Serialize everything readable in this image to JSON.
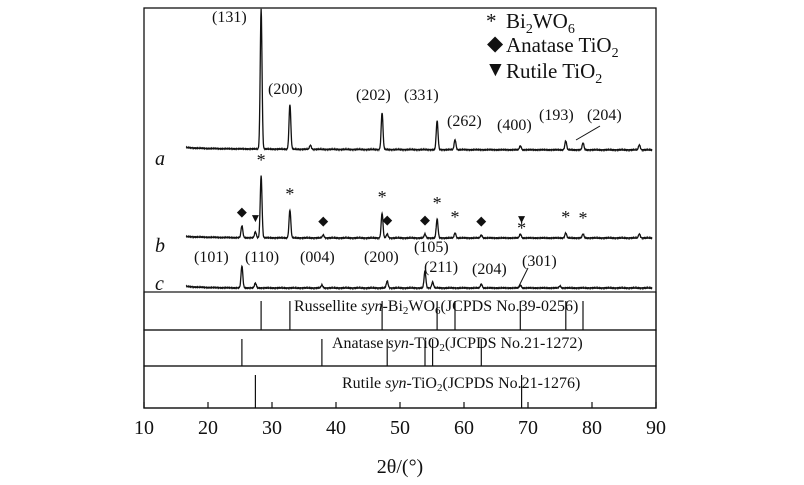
{
  "chart_data": {
    "type": "line",
    "xlabel": "2θ/(°)",
    "xlim": [
      10,
      90
    ],
    "xticks": [
      10,
      20,
      30,
      40,
      50,
      60,
      70,
      80,
      90
    ],
    "legend": [
      {
        "marker": "asterisk",
        "symbol": "*",
        "label_parts": [
          "Bi",
          "2",
          "WO",
          "6"
        ]
      },
      {
        "marker": "diamond",
        "symbol": "◆",
        "label_parts": [
          "Anatase TiO",
          "2"
        ]
      },
      {
        "marker": "triangle-down",
        "symbol": "▼",
        "label_parts": [
          "Rutile TiO",
          "2"
        ]
      }
    ],
    "series": [
      {
        "name": "a",
        "baseline": 0,
        "peaks": [
          {
            "x": 28.3,
            "y": 140
          },
          {
            "x": 32.8,
            "y": 45
          },
          {
            "x": 36.0,
            "y": 4
          },
          {
            "x": 47.2,
            "y": 37
          },
          {
            "x": 55.8,
            "y": 29
          },
          {
            "x": 58.6,
            "y": 10
          },
          {
            "x": 68.8,
            "y": 4
          },
          {
            "x": 75.9,
            "y": 9
          },
          {
            "x": 78.6,
            "y": 7
          },
          {
            "x": 87.4,
            "y": 5
          }
        ],
        "hkl_labels": [
          "(131)",
          "(200)",
          "(202)",
          "(331)",
          "(262)",
          "(400)",
          "(193)",
          "(204)"
        ]
      },
      {
        "name": "b",
        "baseline": 0,
        "peaks": [
          {
            "x": 25.3,
            "y": 12
          },
          {
            "x": 27.4,
            "y": 6
          },
          {
            "x": 28.3,
            "y": 62
          },
          {
            "x": 32.8,
            "y": 28
          },
          {
            "x": 38.0,
            "y": 3
          },
          {
            "x": 47.2,
            "y": 25
          },
          {
            "x": 48.0,
            "y": 4
          },
          {
            "x": 53.9,
            "y": 4
          },
          {
            "x": 55.8,
            "y": 19
          },
          {
            "x": 58.6,
            "y": 5
          },
          {
            "x": 62.7,
            "y": 3
          },
          {
            "x": 68.8,
            "y": 4
          },
          {
            "x": 75.9,
            "y": 5
          },
          {
            "x": 78.6,
            "y": 4
          },
          {
            "x": 87.4,
            "y": 4
          }
        ],
        "markers": [
          {
            "x": 25.3,
            "symbol": "◆"
          },
          {
            "x": 27.4,
            "symbol": "▼"
          },
          {
            "x": 28.3,
            "symbol": "*"
          },
          {
            "x": 32.8,
            "symbol": "*"
          },
          {
            "x": 38.0,
            "symbol": "◆"
          },
          {
            "x": 47.2,
            "symbol": "*"
          },
          {
            "x": 48.0,
            "symbol": "◆"
          },
          {
            "x": 53.9,
            "symbol": "◆"
          },
          {
            "x": 55.8,
            "symbol": "*"
          },
          {
            "x": 58.6,
            "symbol": "*"
          },
          {
            "x": 62.7,
            "symbol": "◆"
          },
          {
            "x": 69.0,
            "symbol": "▼"
          },
          {
            "x": 69.0,
            "symbol": "*"
          },
          {
            "x": 75.9,
            "symbol": "*"
          },
          {
            "x": 78.6,
            "symbol": "*"
          }
        ]
      },
      {
        "name": "c",
        "baseline": 0,
        "peaks": [
          {
            "x": 25.3,
            "y": 22
          },
          {
            "x": 27.4,
            "y": 5
          },
          {
            "x": 37.8,
            "y": 3
          },
          {
            "x": 48.0,
            "y": 7
          },
          {
            "x": 53.9,
            "y": 17
          },
          {
            "x": 55.1,
            "y": 6
          },
          {
            "x": 62.7,
            "y": 4
          },
          {
            "x": 68.8,
            "y": 3
          },
          {
            "x": 75.0,
            "y": 2
          }
        ],
        "hkl_labels": [
          "(101)",
          "(110)",
          "(004)",
          "(200)",
          "(105)",
          "(211)",
          "(204)",
          "(301)"
        ]
      }
    ],
    "reference_patterns": [
      {
        "label_parts": [
          "Russellite ",
          "syn",
          "-Bi",
          "2",
          "WO",
          "6",
          "(JCPDS No.39-0256)"
        ],
        "lines": [
          28.3,
          32.8,
          47.2,
          55.8,
          58.6,
          68.8,
          75.9,
          78.6
        ]
      },
      {
        "label_parts": [
          "Anatase ",
          "syn",
          "-TiO",
          "2",
          "(JCPDS No.21-1272)"
        ],
        "lines": [
          25.3,
          37.8,
          48.0,
          53.9,
          55.1,
          62.7
        ]
      },
      {
        "label_parts": [
          "Rutile ",
          "syn",
          "-TiO",
          "2",
          "(JCPDS No.21-1276)"
        ],
        "lines": [
          27.4,
          69.0
        ]
      }
    ]
  }
}
